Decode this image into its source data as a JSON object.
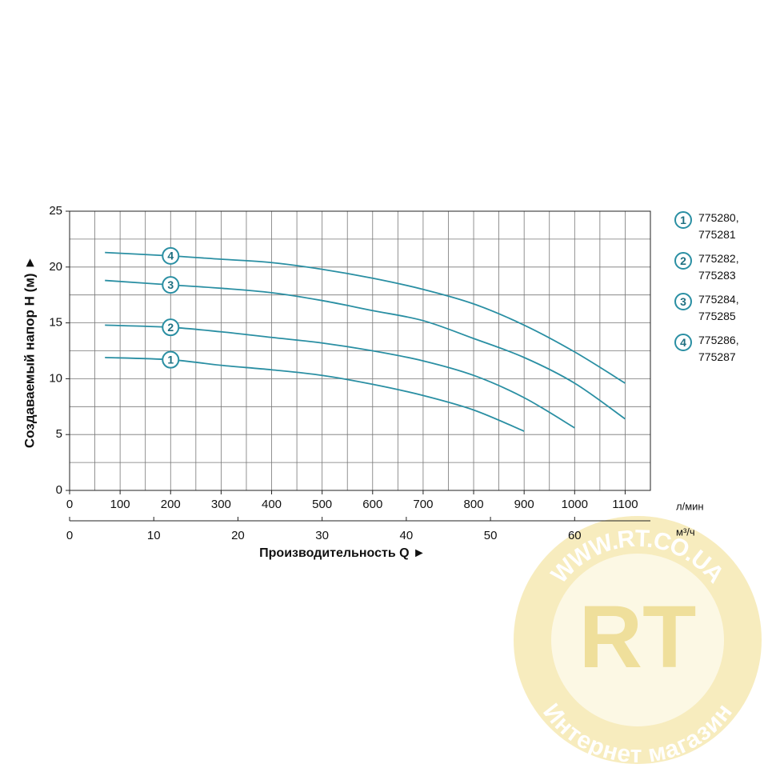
{
  "chart_data": {
    "type": "line",
    "y_label": "Создаваемый напор H (м) ►",
    "x_label": "Производительность Q ►",
    "x_unit": "л/мин",
    "x2_unit": "м³/ч",
    "xlim": [
      0,
      1150
    ],
    "xticks": [
      0,
      100,
      200,
      300,
      400,
      500,
      600,
      700,
      800,
      900,
      1000,
      1100
    ],
    "x2lim": [
      0,
      69
    ],
    "x2ticks": [
      0,
      10,
      20,
      30,
      40,
      50,
      60
    ],
    "ylim": [
      0,
      25
    ],
    "yticks": [
      0,
      5,
      10,
      15,
      20,
      25
    ],
    "xgrid": [
      0,
      50,
      100,
      150,
      200,
      250,
      300,
      350,
      400,
      450,
      500,
      550,
      600,
      650,
      700,
      750,
      800,
      850,
      900,
      950,
      1000,
      1050,
      1100,
      1150
    ],
    "ygrid": [
      0,
      2.5,
      5,
      7.5,
      10,
      12.5,
      15,
      17.5,
      20,
      22.5,
      25
    ],
    "grid": true,
    "series": [
      {
        "label": "1",
        "name": "775280,\n775281",
        "color": "#2a8fa3",
        "x": [
          70,
          200,
          300,
          400,
          500,
          600,
          700,
          800,
          900
        ],
        "values": [
          11.9,
          11.7,
          11.2,
          10.8,
          10.3,
          9.5,
          8.5,
          7.2,
          5.3
        ]
      },
      {
        "label": "2",
        "name": "775282,\n775283",
        "color": "#2a8fa3",
        "x": [
          70,
          200,
          300,
          400,
          500,
          600,
          700,
          800,
          900,
          1000
        ],
        "values": [
          14.8,
          14.6,
          14.2,
          13.7,
          13.2,
          12.5,
          11.6,
          10.3,
          8.3,
          5.6
        ]
      },
      {
        "label": "3",
        "name": "775284,\n775285",
        "color": "#2a8fa3",
        "x": [
          70,
          200,
          300,
          400,
          500,
          600,
          700,
          800,
          900,
          1000,
          1100
        ],
        "values": [
          18.8,
          18.4,
          18.1,
          17.7,
          17.0,
          16.1,
          15.2,
          13.6,
          11.9,
          9.6,
          6.4
        ]
      },
      {
        "label": "4",
        "name": "775286,\n775287",
        "color": "#2a8fa3",
        "x": [
          70,
          200,
          300,
          400,
          500,
          600,
          700,
          800,
          900,
          1000,
          1100
        ],
        "values": [
          21.3,
          21.0,
          20.7,
          20.4,
          19.8,
          19.0,
          18.0,
          16.7,
          14.8,
          12.4,
          9.6
        ]
      }
    ]
  },
  "watermark": {
    "url": "WWW.RT.CO.UA",
    "logo": "RT",
    "caption": "Интернет магазин"
  }
}
